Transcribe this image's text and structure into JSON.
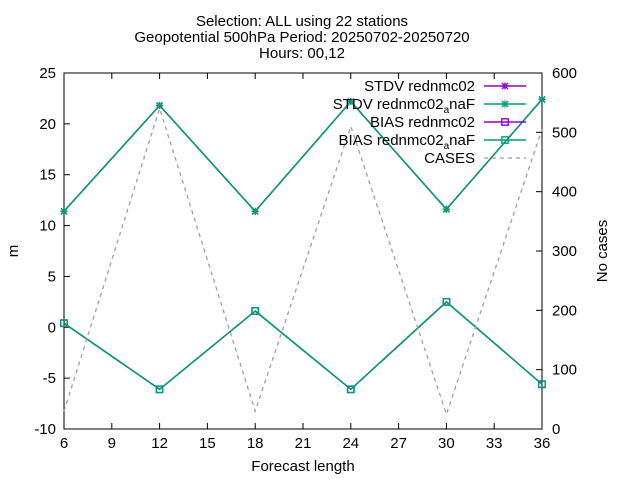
{
  "chart_data": {
    "type": "line",
    "title_lines": [
      "Selection: ALL using    22 stations",
      "Geopotential 500hPa   Period: 20250702-20250720",
      "Hours: 00,12"
    ],
    "xlabel": "Forecast length",
    "ylabel": "m",
    "y2label": "No cases",
    "xlim": [
      6,
      36
    ],
    "ylim": [
      -10,
      25
    ],
    "y2lim": [
      0,
      600
    ],
    "xticks": [
      6,
      9,
      12,
      15,
      18,
      21,
      24,
      27,
      30,
      33,
      36
    ],
    "yticks": [
      -10,
      -5,
      0,
      5,
      10,
      15,
      20,
      25
    ],
    "y2ticks": [
      0,
      100,
      200,
      300,
      400,
      500,
      600
    ],
    "grid": false,
    "legend_position": "top-right",
    "x": [
      6,
      12,
      18,
      24,
      30,
      36
    ],
    "series": [
      {
        "name": "STDV rednmc02",
        "label_main": "STDV rednmc02",
        "label_sub": "",
        "label_tail": "",
        "color": "#9400d3",
        "marker": "star",
        "dash": false,
        "axis": "y1",
        "values": [
          11.4,
          21.8,
          11.4,
          22.2,
          11.6,
          22.4
        ]
      },
      {
        "name": "STDV rednmc02_anaF",
        "label_main": "STDV rednmc02",
        "label_sub": "a",
        "label_tail": "naF",
        "color": "#009e73",
        "marker": "star",
        "dash": false,
        "axis": "y1",
        "values": [
          11.4,
          21.8,
          11.4,
          22.2,
          11.6,
          22.4
        ]
      },
      {
        "name": "BIAS rednmc02",
        "label_main": "BIAS rednmc02",
        "label_sub": "",
        "label_tail": "",
        "color": "#9400d3",
        "marker": "square",
        "dash": false,
        "axis": "y1",
        "values": [
          0.4,
          -6.1,
          1.6,
          -6.1,
          2.5,
          -5.6
        ]
      },
      {
        "name": "BIAS rednmc02_anaF",
        "label_main": "BIAS rednmc02",
        "label_sub": "a",
        "label_tail": "naF",
        "color": "#009e73",
        "marker": "square",
        "dash": false,
        "axis": "y1",
        "values": [
          0.4,
          -6.1,
          1.6,
          -6.1,
          2.5,
          -5.6
        ]
      },
      {
        "name": "CASES",
        "label_main": "CASES",
        "label_sub": "",
        "label_tail": "",
        "color": "#a0a0a0",
        "marker": "none",
        "dash": true,
        "axis": "y2",
        "values": [
          30,
          540,
          30,
          510,
          25,
          505
        ]
      }
    ]
  }
}
